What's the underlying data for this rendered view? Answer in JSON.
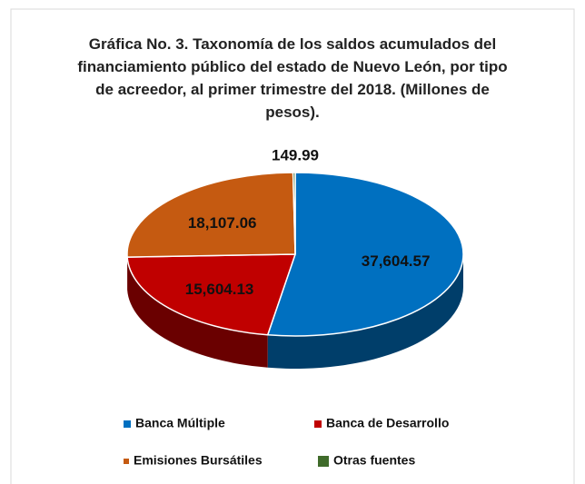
{
  "chart_data": {
    "type": "pie",
    "title": "Gráfica No. 3. Taxonomía de los saldos acumulados del financiamiento público del estado de Nuevo León, por tipo de acreedor, al primer trimestre del 2018. (Millones de pesos).",
    "categories": [
      "Banca Múltiple",
      "Banca de Desarrollo",
      "Emisiones Bursátiles",
      "Otras fuentes"
    ],
    "values": [
      37604.57,
      15604.13,
      18107.06,
      149.99
    ],
    "value_labels": [
      "37,604.57",
      "15,604.13",
      "18,107.06",
      "149.99"
    ],
    "colors": [
      "#0070c0",
      "#c00000",
      "#c55a11",
      "#3f6b2a"
    ],
    "legend": "bottom"
  }
}
